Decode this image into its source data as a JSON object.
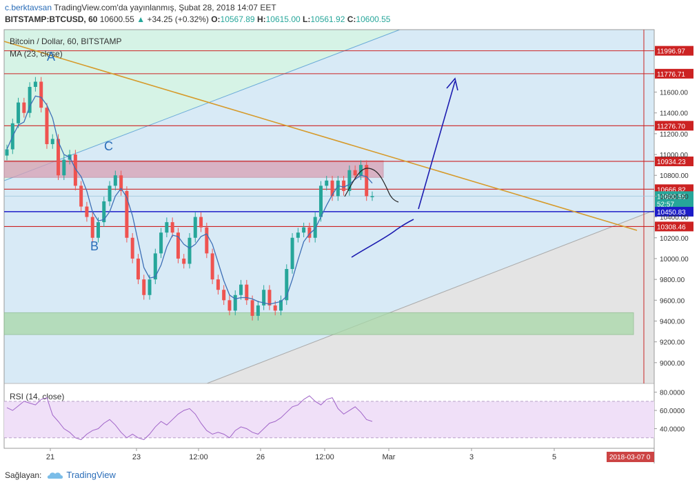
{
  "header": {
    "author": "c.berktavsan",
    "published": "TradingView.com'da yayınlanmış, Şubat 28, 2018 14:07 EET",
    "symbol": "BITSTAMP:BTCUSD, 60",
    "last": "10600.55",
    "arrow": "▲",
    "change": "+34.25 (+0.32%)",
    "o_label": "O:",
    "o_val": "10567.89",
    "h_label": "H:",
    "h_val": "10615.00",
    "l_label": "L:",
    "l_val": "10561.92",
    "c_label": "C:",
    "c_val": "10600.55"
  },
  "footer": {
    "shared_by": "Sağlayan:",
    "brand": "TradingView"
  },
  "colors": {
    "up": "#26a69a",
    "down": "#ef5350",
    "ma": "#3d6fb6",
    "rsi": "#a064c8",
    "level": "#cc2222",
    "trend": "#d69a2a",
    "blue_line": "#1c1cc8",
    "draw": "#1c1cb0"
  },
  "chart_data": {
    "type": "candlestick",
    "title": "Bitcoin / Dollar, 60, BITSTAMP",
    "indicator": "MA (23, close)",
    "ylim": [
      8800,
      12200
    ],
    "y_ticks": [
      9000,
      9200,
      9400,
      9600,
      9800,
      10000,
      10200,
      10400,
      10600,
      10800,
      11000,
      11200,
      11400,
      11600
    ],
    "y_tick_labels": [
      "9000.00",
      "9200.00",
      "9400.00",
      "9600.00",
      "9800.00",
      "10000.00",
      "10200.00",
      "10400.00",
      "10600.00",
      "10800.00",
      "11000.00",
      "11200.00",
      "11400.00",
      "11600.00"
    ],
    "x_ticks": [
      "21",
      "23",
      "12:00",
      "26",
      "12:00",
      "Mar",
      "3",
      "5"
    ],
    "x_date_label": "2018-03-07 0",
    "price_labels": [
      {
        "value": 11996.97,
        "text": "11996.97",
        "color": "#cc2222"
      },
      {
        "value": 11776.71,
        "text": "11776.71",
        "color": "#cc2222"
      },
      {
        "value": 11276.7,
        "text": "11276.70",
        "color": "#cc2222"
      },
      {
        "value": 10934.23,
        "text": "10934.23",
        "color": "#cc2222"
      },
      {
        "value": 10666.82,
        "text": "10666.82",
        "color": "#cc2222"
      },
      {
        "value": 10600.55,
        "text": "10600.55",
        "color": "#26a69a"
      },
      {
        "value": 10525,
        "text": "52:57",
        "color": "#26a69a"
      },
      {
        "value": 10450.83,
        "text": "10450.83",
        "color": "#1c1cc8"
      },
      {
        "value": 10308.46,
        "text": "10308.46",
        "color": "#cc2222"
      }
    ],
    "annotations": [
      "A",
      "B",
      "C"
    ],
    "zones": [
      {
        "name": "resistance",
        "from": 10780,
        "to": 10940,
        "color": "#d9a0b4"
      },
      {
        "name": "support",
        "from": 9270,
        "to": 9480,
        "color": "#a8d8a8"
      }
    ],
    "closes": [
      11050,
      11300,
      11500,
      11400,
      11650,
      11700,
      11450,
      11100,
      11150,
      10800,
      10950,
      11000,
      10700,
      10500,
      10400,
      10200,
      10350,
      10550,
      10700,
      10800,
      10650,
      10200,
      10000,
      9800,
      9650,
      9800,
      10050,
      10250,
      10350,
      10250,
      10000,
      9950,
      10200,
      10400,
      10300,
      10050,
      9800,
      9700,
      9600,
      9500,
      9650,
      9750,
      9600,
      9450,
      9550,
      9700,
      9550,
      9500,
      9600,
      9900,
      10200,
      10250,
      10300,
      10200,
      10400,
      10700,
      10750,
      10600,
      10750,
      10650,
      10850,
      10800,
      10900,
      10600,
      10600
    ],
    "rsi": {
      "label": "RSI (14, close)",
      "ylim": [
        20,
        85
      ],
      "y_ticks": [
        "80.0000",
        "60.0000",
        "40.0000"
      ],
      "bands": [
        70,
        30
      ],
      "values": [
        63,
        60,
        65,
        70,
        68,
        66,
        72,
        74,
        55,
        48,
        40,
        36,
        30,
        28,
        34,
        38,
        40,
        46,
        50,
        44,
        36,
        30,
        34,
        30,
        28,
        34,
        42,
        48,
        44,
        50,
        56,
        60,
        62,
        56,
        46,
        38,
        34,
        36,
        34,
        30,
        38,
        42,
        40,
        36,
        34,
        40,
        46,
        48,
        52,
        58,
        64,
        66,
        72,
        76,
        70,
        66,
        72,
        74,
        62,
        56,
        60,
        64,
        58,
        50,
        48
      ]
    }
  }
}
